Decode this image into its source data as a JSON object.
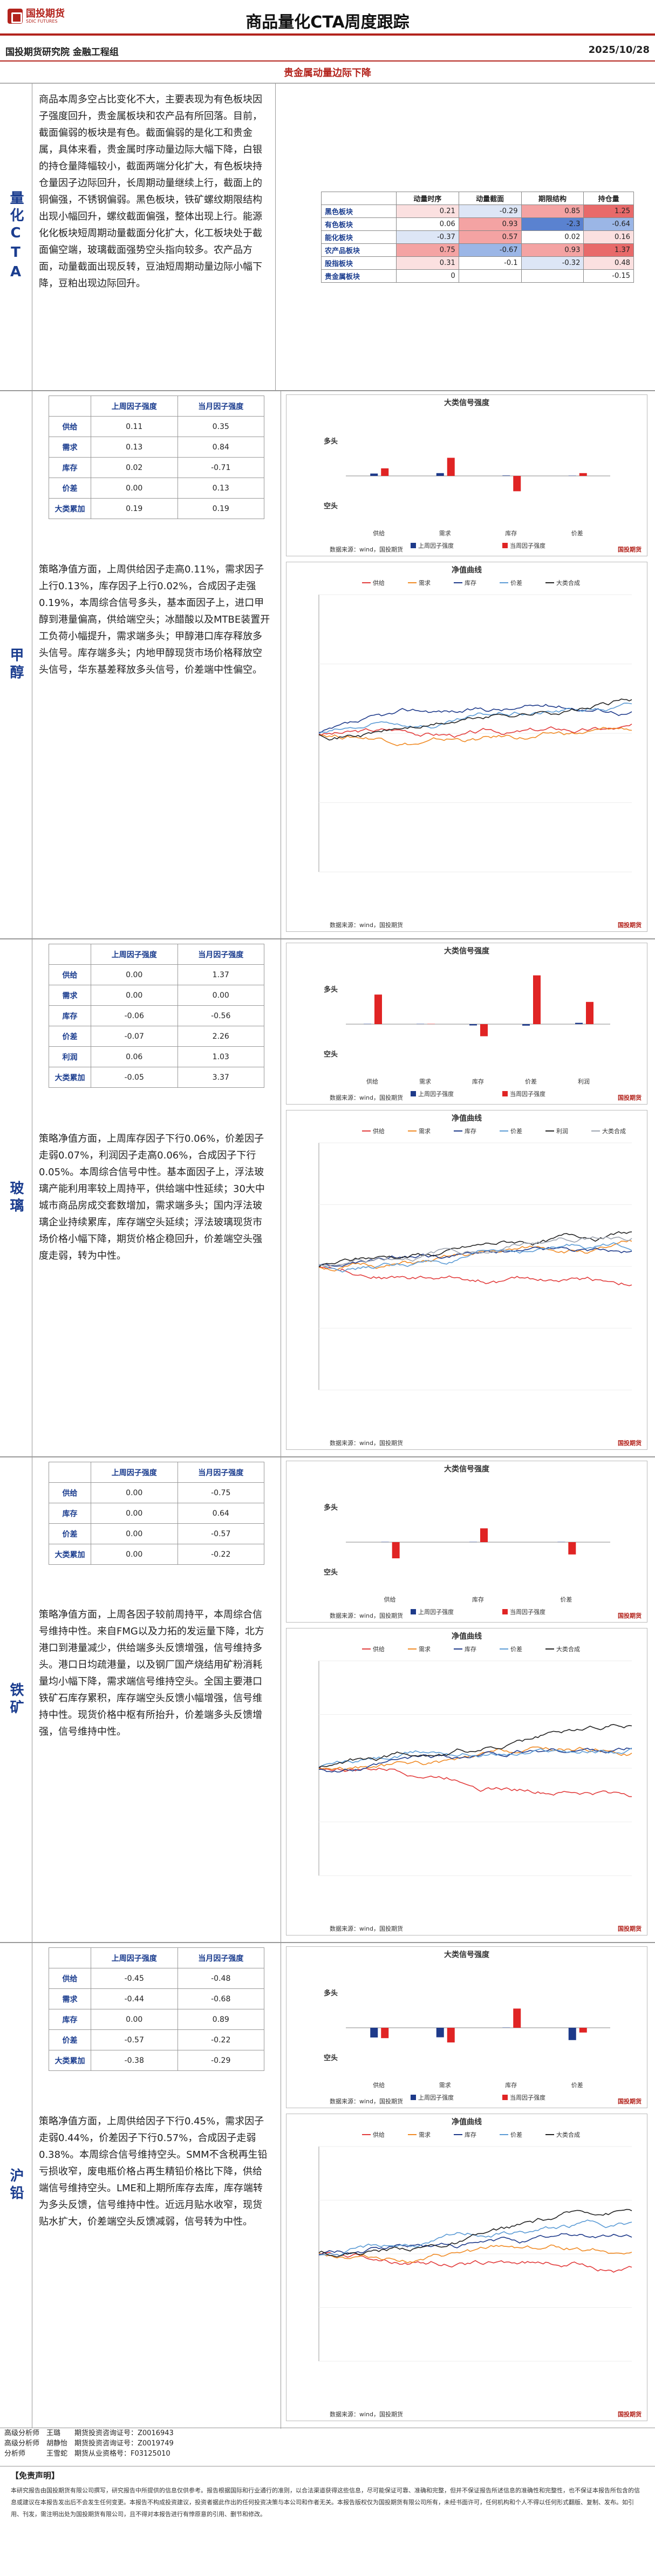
{
  "header": {
    "logo_text": "国投期货",
    "logo_sub": "SDIC FUTURES",
    "title": "商品量化CTA周度跟踪",
    "org": "国投期货研究院 金融工程组",
    "date": "2025/10/28"
  },
  "headline": "贵金属动量边际下降",
  "cta": {
    "label": "量化CTA",
    "text": "商品本周多空占比变化不大，主要表现为有色板块因子强度回升，贵金属板块和农产品有所回落。目前，截面偏弱的板块是有色。截面偏弱的是化工和贵金属，具体来看，贵金属时序动量边际大幅下降，白银的持仓量降幅较小，截面两端分化扩大，有色板块持仓量因子边际回升，长周期动量继续上行，截面上的铜偏强，不锈钢偏弱。黑色板块，铁矿螺纹期限结构出现小幅回升，螺纹截面偏强，整体出现上行。能源化化板块短周期动量截面分化扩大，化工板块处于截面偏空端，玻璃截面强势空头指向较多。农产品方面，动量截面出现反转，豆油短周期动量边际小幅下降，豆粕出现边际回升。",
    "heat_headers": [
      "",
      "动量时序",
      "动量截面",
      "期限结构",
      "持仓量"
    ],
    "heat_rows": [
      {
        "name": "黑色板块",
        "values": [
          "0.21",
          "-0.29",
          "0.85",
          "1.25"
        ]
      },
      {
        "name": "有色板块",
        "values": [
          "0.06",
          "0.93",
          "-2.3",
          "-0.64"
        ]
      },
      {
        "name": "能化板块",
        "values": [
          "-0.37",
          "0.57",
          "0.02",
          "0.16"
        ]
      },
      {
        "name": "农产品板块",
        "values": [
          "0.75",
          "-0.67",
          "0.93",
          "1.37"
        ]
      },
      {
        "name": "股指板块",
        "values": [
          "0.31",
          "-0.1",
          "-0.32",
          "0.48"
        ]
      },
      {
        "name": "贵金属板块",
        "values": [
          "0",
          "",
          "",
          "-0.15"
        ]
      }
    ]
  },
  "common": {
    "col1": "上周因子强度",
    "col2": "当月因子强度",
    "bar_chart_title": "大类信号强度",
    "nav_chart_title": "净值曲线",
    "source": "数据来源：wind，国投期货",
    "brand": "国投期货",
    "long": "多头",
    "short": "空头",
    "legend_last": "上周因子强度",
    "legend_month": "当周因子强度"
  },
  "sections": [
    {
      "id": "methanol",
      "label": "甲醇",
      "rows": [
        {
          "name": "供给",
          "a": "0.11",
          "b": "0.35"
        },
        {
          "name": "需求",
          "a": "0.13",
          "b": "0.84"
        },
        {
          "name": "库存",
          "a": "0.02",
          "b": "-0.71"
        },
        {
          "name": "价差",
          "a": "0.00",
          "b": "0.13"
        },
        {
          "name": "大类累加",
          "a": "0.19",
          "b": "0.19"
        }
      ],
      "text": "策略净值方面，上周供给因子走高0.11%，需求因子上行0.13%，库存因子上行0.02%，合成因子走强0.19%，本周综合信号多头，基本面因子上，进口甲醇到港量偏高，供给端空头；冰醋酸以及MTBE装置开工负荷小幅提升，需求端多头；甲醇港口库存释放多头信号。库存端多头；内地甲醇现货市场价格释放空头信号，华东基差释放多头信号，价差端中性偏空。",
      "bar_cats": [
        "供给",
        "需求",
        "库存",
        "价差"
      ],
      "bar_a": [
        0.11,
        0.13,
        0.02,
        0.0
      ],
      "bar_b": [
        0.35,
        0.84,
        -0.71,
        0.13
      ],
      "nav_legend": [
        "供给",
        "需求",
        "库存",
        "价差",
        "大类合成"
      ]
    },
    {
      "id": "glass",
      "label": "玻璃",
      "rows": [
        {
          "name": "供给",
          "a": "0.00",
          "b": "1.37"
        },
        {
          "name": "需求",
          "a": "0.00",
          "b": "0.00"
        },
        {
          "name": "库存",
          "a": "-0.06",
          "b": "-0.56"
        },
        {
          "name": "价差",
          "a": "-0.07",
          "b": "2.26"
        },
        {
          "name": "利润",
          "a": "0.06",
          "b": "1.03"
        },
        {
          "name": "大类累加",
          "a": "-0.05",
          "b": "3.37"
        }
      ],
      "text": "策略净值方面，上周库存因子下行0.06%，价差因子走弱0.07%，利润因子走高0.06%，合成因子下行0.05%。本周综合信号中性。基本面因子上，浮法玻璃产能利用率较上周持平，供给端中性延续；30大中城市商品房成交套数增加，需求端多头；国内浮法玻璃企业持续累库，库存端空头延续；浮法玻璃现货市场价格小幅下降，期货价格企稳回升，价差端空头强度走弱，转为中性。",
      "bar_cats": [
        "供给",
        "需求",
        "库存",
        "价差",
        "利润"
      ],
      "bar_a": [
        0.0,
        0.0,
        -0.06,
        -0.07,
        0.06
      ],
      "bar_b": [
        1.37,
        0.0,
        -0.56,
        2.26,
        1.03
      ],
      "nav_legend": [
        "供给",
        "需求",
        "库存",
        "价差",
        "利润",
        "大类合成"
      ]
    },
    {
      "id": "iron",
      "label": "铁矿",
      "rows": [
        {
          "name": "供给",
          "a": "0.00",
          "b": "-0.75"
        },
        {
          "name": "库存",
          "a": "0.00",
          "b": "0.64"
        },
        {
          "name": "价差",
          "a": "0.00",
          "b": "-0.57"
        },
        {
          "name": "大类累加",
          "a": "0.00",
          "b": "-0.22"
        }
      ],
      "text": "策略净值方面，上周各因子较前周持平，本周综合信号维持中性。来自FMG以及力拓的发运量下降，北方港口到港量减少，供给端多头反馈增强，信号维持多头。港口日均疏港量，以及钢厂国产烧结用矿粉消耗量均小幅下降，需求端信号维持空头。全国主要港口铁矿石库存累积，库存端空头反馈小幅增强，信号维持中性。现货价格中枢有所抬升，价差端多头反馈增强，信号维持中性。",
      "bar_cats": [
        "供给",
        "库存",
        "价差"
      ],
      "bar_a": [
        0.0,
        0.0,
        0.0
      ],
      "bar_b": [
        -0.75,
        0.64,
        -0.57
      ],
      "nav_legend": [
        "供给",
        "需求",
        "库存",
        "价差",
        "大类合成"
      ]
    },
    {
      "id": "lead",
      "label": "沪铅",
      "rows": [
        {
          "name": "供给",
          "a": "-0.45",
          "b": "-0.48"
        },
        {
          "name": "需求",
          "a": "-0.44",
          "b": "-0.68"
        },
        {
          "name": "库存",
          "a": "0.00",
          "b": "0.89"
        },
        {
          "name": "价差",
          "a": "-0.57",
          "b": "-0.22"
        },
        {
          "name": "大类累加",
          "a": "-0.38",
          "b": "-0.29"
        }
      ],
      "text": "策略净值方面，上周供给因子下行0.45%，需求因子走弱0.44%，价差因子下行0.57%，合成因子走弱0.38%。本周综合信号维持空头。SMM不含税再生铅亏损收窄，废电瓶价格占再生精铅价格比下降，供给端信号维持空头。LME和上期所库存去库，库存端转为多头反馈，信号维持中性。近远月贴水收窄，现货贴水扩大，价差端空头反馈减弱，信号转为中性。",
      "bar_cats": [
        "供给",
        "需求",
        "库存",
        "价差"
      ],
      "bar_a": [
        -0.45,
        -0.44,
        0.0,
        -0.57
      ],
      "bar_b": [
        -0.48,
        -0.68,
        0.89,
        -0.22
      ],
      "nav_legend": [
        "供给",
        "需求",
        "库存",
        "价差",
        "大类合成"
      ]
    }
  ],
  "analysts": [
    "高级分析师　王璐　　期货投资咨询证号：Z0016943",
    "高级分析师　胡静怡　期货投资咨询证号：Z0019749",
    "分析师　　　王雪蛇　期货从业资格号：F03125010"
  ],
  "disclaimer": {
    "title": "【免责声明】",
    "text": "本研究报告由国投期货有限公司撰写，研究报告中所提供的信息仅供参考。报告根据国际和行业通行的准则，以合法渠道获得这些信息，尽可能保证可靠、准确和完整，但并不保证报告所述信息的准确性和完整性，也不保证本报告所包含的信息或建议在本报告发出后不会发生任何变更。本报告不构成投资建议，投资者据此作出的任何投资决策与本公司和作者无关。本报告版权仅为国投期货有限公司所有，未经书面许可，任何机构和个人不得以任何形式翻版、复制、发布。如引用、刊发，需注明出处为国投期货有限公司，且不得对本报告进行有悖原意的引用、删节和修改。"
  }
}
